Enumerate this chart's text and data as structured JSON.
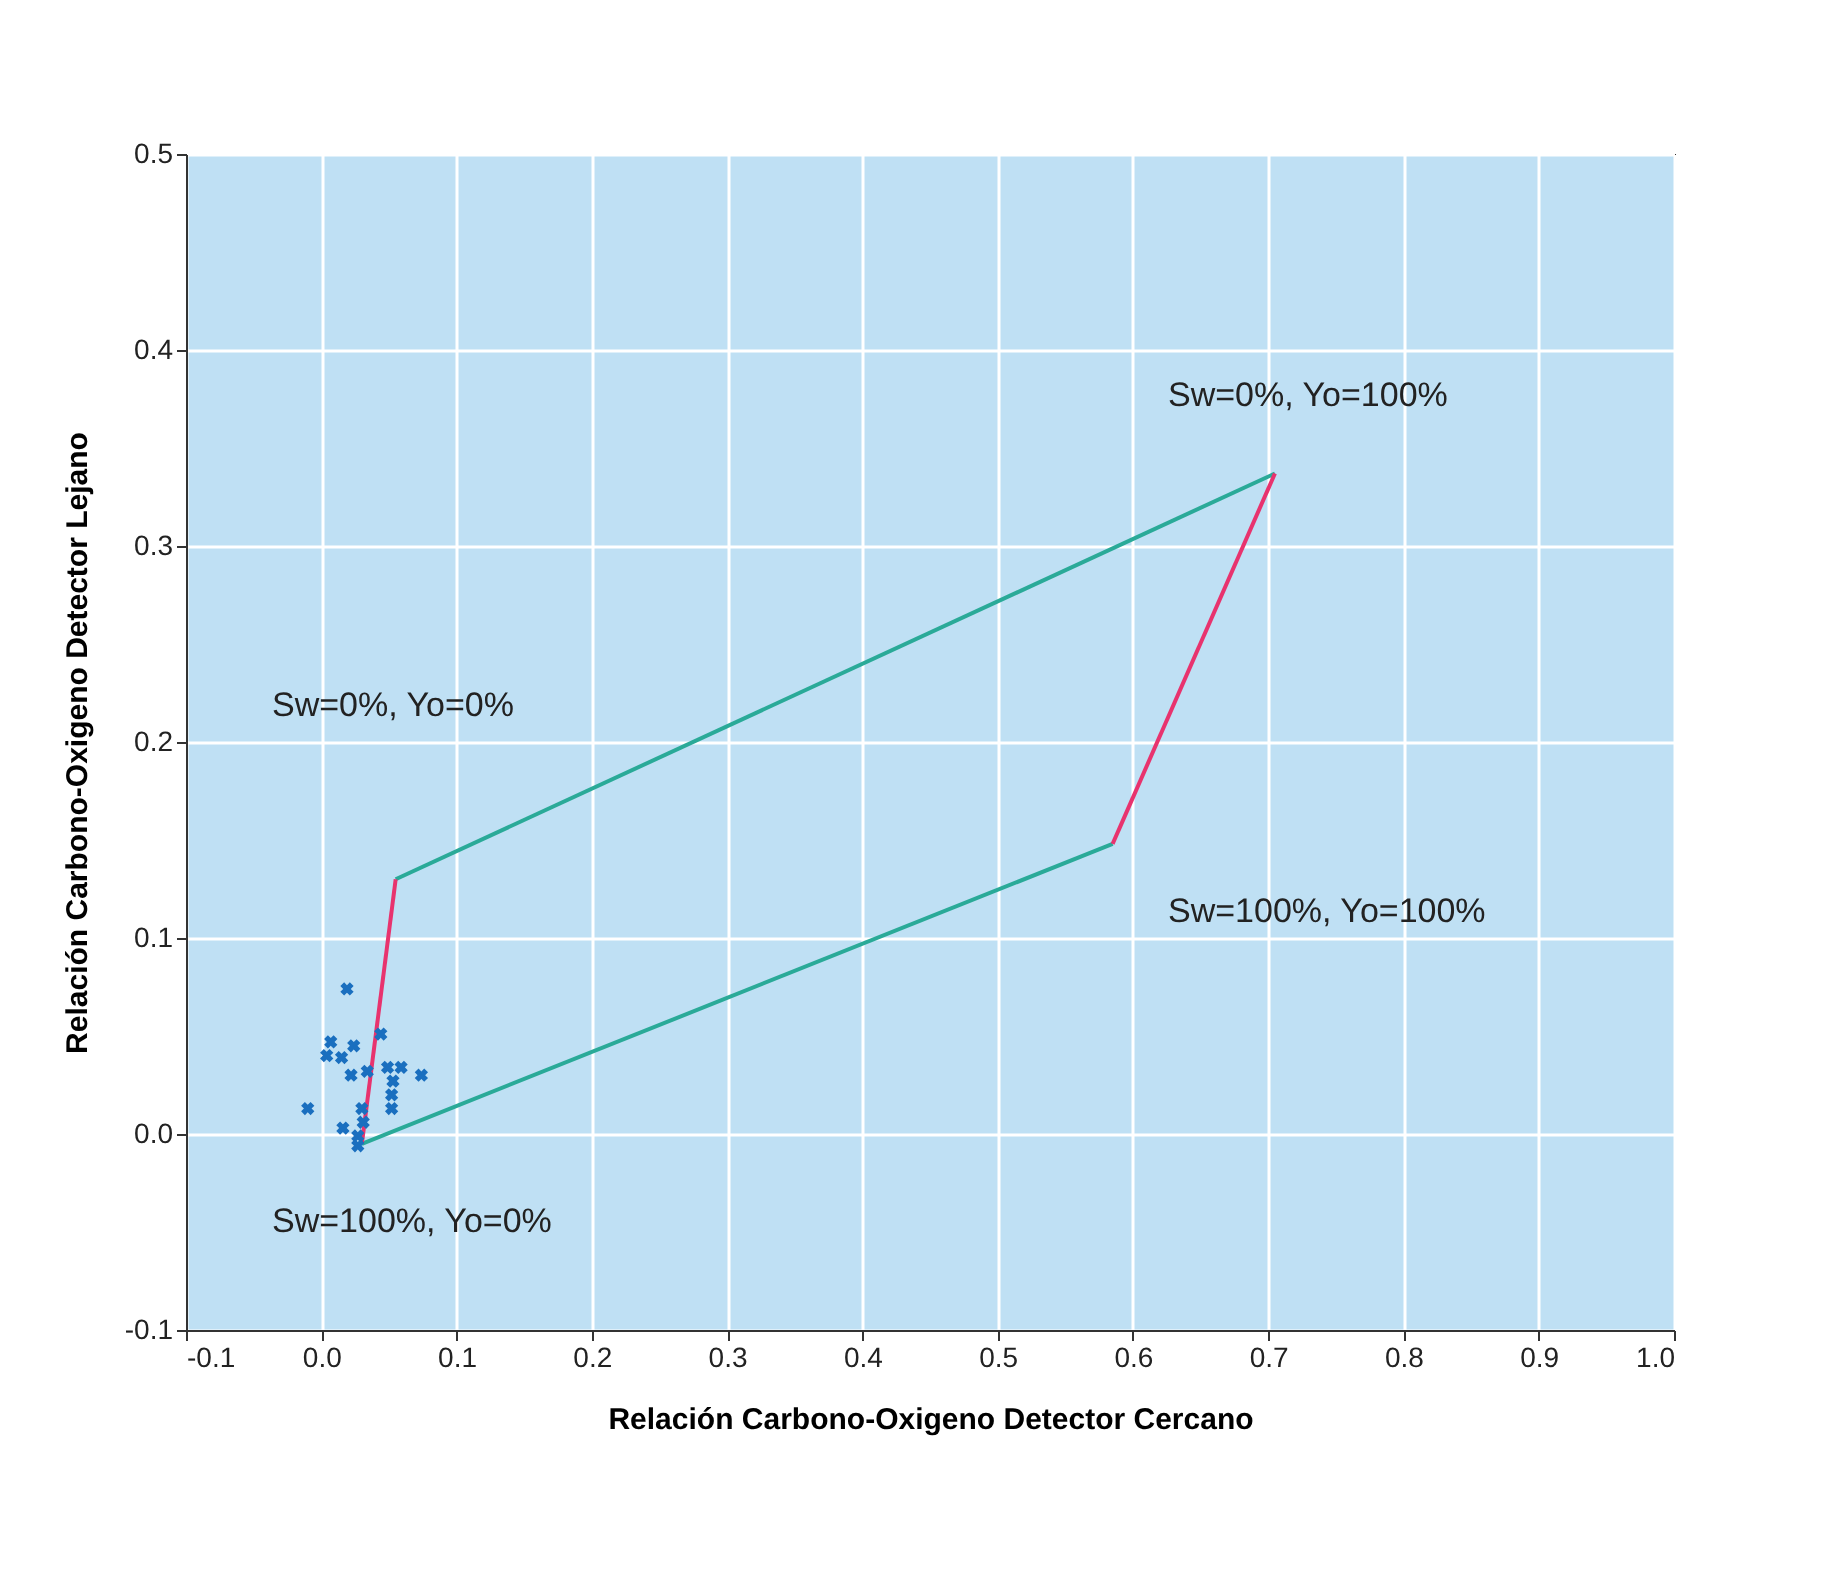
{
  "chart_data": {
    "type": "line",
    "xlabel": "Relación Carbono-Oxigeno Detector Cercano",
    "ylabel": "Relación Carbono-Oxigeno Detector Lejano",
    "xlim": [
      -0.1,
      1.0
    ],
    "xticks": [
      -0.1,
      {
        "value": 0,
        "label": "0.0"
      },
      0.1,
      0.2,
      0.3,
      0.4,
      0.5,
      0.6,
      0.7,
      0.8,
      0.9,
      {
        "value": 1,
        "label": "1.0"
      }
    ],
    "ylim": [
      -0.1,
      0.5
    ],
    "yticks": [
      -0.1,
      {
        "value": 0,
        "label": "0.0"
      },
      0.1,
      0.2,
      0.3,
      0.4,
      0.5
    ],
    "grid": true,
    "series": [
      {
        "color": "#2aaa98",
        "x": [
          0.055,
          0.705
        ],
        "values": [
          0.13,
          0.337
        ]
      },
      {
        "color": "#2aaa98",
        "x": [
          0.03,
          0.585
        ],
        "values": [
          -0.005,
          0.148
        ]
      },
      {
        "color": "#e8336e",
        "x": [
          0.03,
          0.055
        ],
        "values": [
          -0.005,
          0.13
        ]
      },
      {
        "color": "#e8336e",
        "x": [
          0.585,
          0.705
        ],
        "values": [
          0.148,
          0.337
        ]
      },
      {
        "type": "scatter",
        "color": "#1a6fbf",
        "marker": "cross",
        "x": [
          0.019,
          0.044,
          0.007,
          0.024,
          0.004,
          0.015,
          0.049,
          0.059,
          0.074,
          0.022,
          0.034,
          0.053,
          0.052,
          -0.01,
          0.03,
          0.052,
          0.031,
          0.016,
          0.027,
          0.027
        ],
        "values": [
          0.074,
          0.051,
          0.047,
          0.045,
          0.04,
          0.039,
          0.034,
          0.034,
          0.03,
          0.03,
          0.032,
          0.027,
          0.02,
          0.013,
          0.013,
          0.013,
          0.006,
          0.003,
          -0.001,
          -0.006
        ]
      }
    ],
    "annotations": [
      "Sw=0%, Yo=100%",
      "Sw=0%, Yo=0%",
      "Sw=100%, Yo=100%",
      "Sw=100%, Yo=0%"
    ]
  }
}
